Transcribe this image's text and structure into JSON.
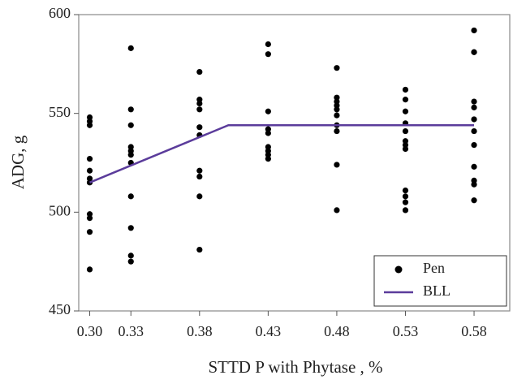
{
  "chart_data": {
    "type": "scatter",
    "xlabel": "STTD P with Phytase , %",
    "ylabel": "ADG, g",
    "xlim": [
      0.292,
      0.606
    ],
    "ylim": [
      450,
      600
    ],
    "xticks": [
      {
        "value": 0.3,
        "label": "0.30"
      },
      0.33,
      0.38,
      0.43,
      0.48,
      0.53,
      0.58
    ],
    "yticks": [
      450,
      500,
      550,
      600
    ],
    "grid": false,
    "legend": "lower right",
    "series": [
      {
        "name": "Pen",
        "style": "markers",
        "color": "#000000",
        "x": [
          0.3,
          0.3,
          0.3,
          0.3,
          0.3,
          0.3,
          0.3,
          0.3,
          0.3,
          0.3,
          0.3,
          0.33,
          0.33,
          0.33,
          0.33,
          0.33,
          0.33,
          0.33,
          0.33,
          0.33,
          0.33,
          0.33,
          0.38,
          0.38,
          0.38,
          0.38,
          0.38,
          0.38,
          0.38,
          0.38,
          0.38,
          0.38,
          0.43,
          0.43,
          0.43,
          0.43,
          0.43,
          0.43,
          0.43,
          0.43,
          0.43,
          0.48,
          0.48,
          0.48,
          0.48,
          0.48,
          0.48,
          0.48,
          0.48,
          0.48,
          0.48,
          0.53,
          0.53,
          0.53,
          0.53,
          0.53,
          0.53,
          0.53,
          0.53,
          0.53,
          0.53,
          0.53,
          0.53,
          0.58,
          0.58,
          0.58,
          0.58,
          0.58,
          0.58,
          0.58,
          0.58,
          0.58,
          0.58,
          0.58,
          0.58
        ],
        "values": [
          548,
          546,
          544,
          527,
          521,
          517,
          515,
          499,
          497,
          490,
          471,
          583,
          552,
          544,
          533,
          531,
          529,
          525,
          508,
          492,
          478,
          475,
          571,
          557,
          555,
          552,
          543,
          539,
          521,
          518,
          508,
          481,
          585,
          580,
          551,
          542,
          540,
          533,
          531,
          529,
          527,
          573,
          558,
          556,
          554,
          552,
          549,
          544,
          541,
          524,
          501,
          562,
          557,
          551,
          545,
          541,
          536,
          534,
          532,
          511,
          508,
          505,
          501,
          592,
          581,
          581,
          556,
          553,
          547,
          541,
          534,
          523,
          516,
          514,
          506
        ]
      },
      {
        "name": "BLL",
        "style": "line",
        "color": "#5b3c9b",
        "x": [
          0.3,
          0.401,
          0.58
        ],
        "values": [
          515,
          544,
          544
        ]
      }
    ]
  }
}
